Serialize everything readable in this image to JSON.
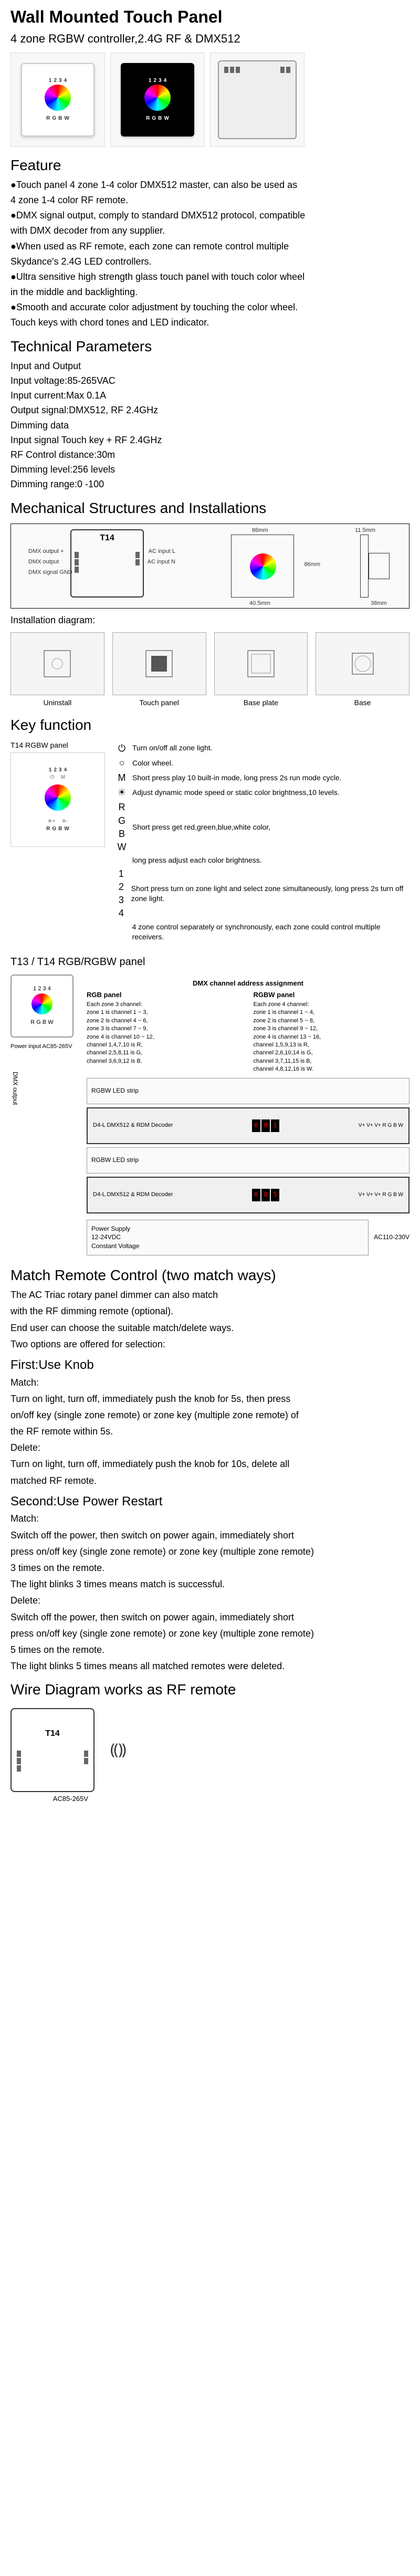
{
  "header": {
    "title": "Wall Mounted Touch Panel",
    "subtitle": "4 zone RGBW controller,2.4G RF & DMX512"
  },
  "features": {
    "title": "Feature",
    "items": [
      "●Touch panel 4 zone 1-4 color DMX512 master, can also be used as",
      "4 zone 1-4 color RF remote.",
      "●DMX signal output, comply to standard DMX512 protocol, compatible",
      "with DMX decoder from any supplier.",
      "●When used as RF remote, each zone can remote control multiple",
      "Skydance's 2.4G LED controllers.",
      "●Ultra sensitive high strength glass touch panel with touch color wheel",
      "in the middle and backlighting.",
      "●Smooth and accurate color adjustment by touching the color wheel.",
      "Touch keys with chord tones and LED indicator."
    ]
  },
  "params": {
    "title": "Technical Parameters",
    "io_header": "Input and Output",
    "lines": [
      "Input voltage:85-265VAC",
      "Input current:Max 0.1A",
      "Output signal:DMX512, RF 2.4GHz"
    ],
    "dimming_header": "Dimming data",
    "dimming_lines": [
      "Input signal    Touch key + RF 2.4GHz",
      "RF Control distance:30m",
      "Dimming level:256 levels",
      "Dimming range:0 -100"
    ]
  },
  "mech": {
    "title": "Mechanical Structures and Installations",
    "panel_label": "T14",
    "dmx_out_plus": "DMX output +",
    "dmx_out": "DMX output",
    "dmx_gnd": "DMX signal GND",
    "ac_l": "AC input L",
    "ac_n": "AC input N",
    "dim_w": "86mm",
    "dim_h": "86mm",
    "dim_d": "11.5mm",
    "dim_back": "40.5mm",
    "dim_depth": "38mm",
    "install_title": "Installation diagram:",
    "install_labels": [
      "Uninstall",
      "Touch panel",
      "Base plate",
      "Base"
    ]
  },
  "keyfunc": {
    "title": "Key function",
    "panel_label": "T14 RGBW panel",
    "desc": [
      {
        "icon": "⏻",
        "text": "Turn on/off all zone light."
      },
      {
        "icon": "○",
        "text": "Color wheel."
      },
      {
        "icon": "M",
        "text": "Short press play 10 built-in mode, long press 2s run mode cycle."
      },
      {
        "icon": "☀",
        "text": "Adjust dynamic mode speed or static color brightness,10 levels."
      },
      {
        "icon": "R G B W",
        "text": "Short press get red,green,blue,white color,"
      },
      {
        "icon": "",
        "text": "long press adjust each color brightness."
      },
      {
        "icon": "1 2 3 4",
        "text": "Short press turn on zone light and select zone simultaneously, long press 2s turn off zone light."
      },
      {
        "icon": "",
        "text": "4 zone control separately or synchronously, each zone could control multiple receivers."
      }
    ]
  },
  "wiring": {
    "title": "T13 / T14    RGB/RGBW panel",
    "dmx_title": "DMX channel address assignment",
    "rgb_title": "RGB panel",
    "rgbw_title": "RGBW panel",
    "rgb_lines": [
      "Each zone 3 channel:",
      "zone 1 is channel 1 ~ 3,",
      "zone 2 is channel 4 ~ 6,",
      "zone 3 is channel 7 ~ 9,",
      "zone 4 is channel 10 ~ 12,",
      "channel 1,4,7,10 is R,",
      "channel 2,5,8,11 is G,",
      "channel 3,6,9,12 is B."
    ],
    "rgbw_lines": [
      "Each zone 4 channel:",
      "zone 1 is channel 1 ~ 4,",
      "zone 2 is channel 5 ~ 8,",
      "zone 3 is channel 9 ~ 12,",
      "zone 4 is channel 13 ~ 16,",
      "channel 1,5,9,13 is R,",
      "channel 2,6,10,14 is G,",
      "channel 3,7,11,15 is B,",
      "channel 4,8,12,16 is W."
    ],
    "power_input": "Power input\nAC85-265V",
    "rgbw_strip": "RGBW LED strip",
    "decoder_label": "D4-L DMX512 & RDM Decoder",
    "psu": "Power Supply\n12-24VDC\nConstant Voltage",
    "ac": "AC110-230V",
    "dmx_output_label": "DMX output"
  },
  "match": {
    "title": "Match Remote Control (two match ways)",
    "intro": [
      "The AC Triac rotary panel dimmer can also match",
      "with the RF dimming remote (optional).",
      "End user can choose the suitable match/delete ways.",
      "Two options are offered for selection:"
    ],
    "first_title": "First:Use Knob",
    "match_label": "Match:",
    "first_match": [
      "Turn  on light, turn off, immediately push the knob  for 5s, then press",
      "on/off key (single zone remote) or zone key (multiple zone remote) of",
      "the RF remote within 5s."
    ],
    "delete_label": "Delete:",
    "first_delete": [
      "Turn on light, turn off, immediately push the knob for 10s, delete all",
      "matched RF remote."
    ],
    "second_title": "Second:Use Power Restart",
    "second_match": [
      "Switch off the power, then switch on power again, immediately short",
      "press on/off key (single zone remote) or zone key (multiple zone remote)",
      "3 times on the remote.",
      "The light blinks 3 times means match is successful."
    ],
    "second_delete": [
      "Switch off the power, then switch on power again, immediately short",
      "press on/off key (single zone remote) or zone key (multiple zone remote)",
      "5 times on the remote.",
      "The light blinks 5 times means all matched remotes were deleted."
    ]
  },
  "wire_rf": {
    "title": "Wire Diagram works as RF remote",
    "panel_label": "T14",
    "ac_label": "AC85-265V"
  }
}
